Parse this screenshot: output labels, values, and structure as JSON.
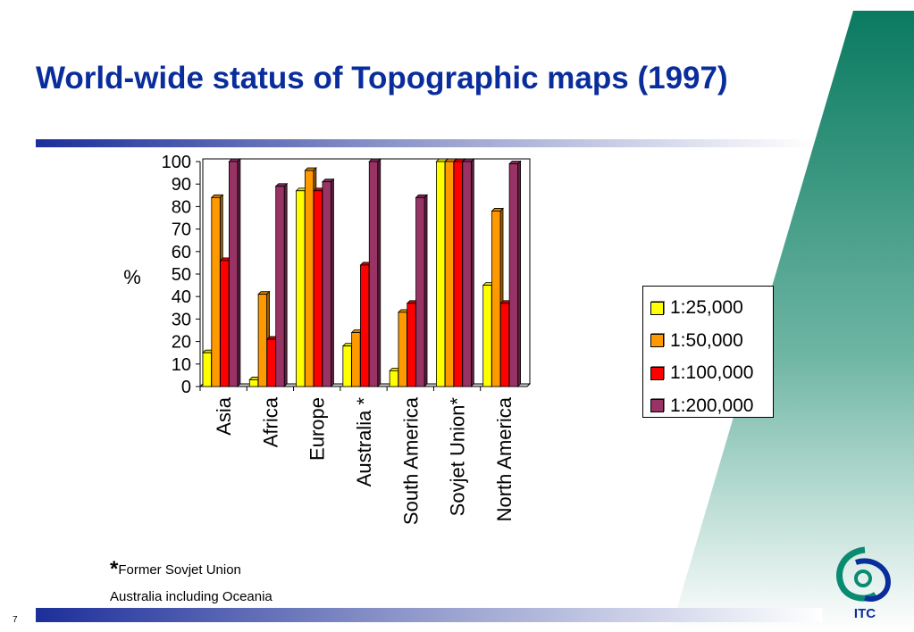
{
  "slide": {
    "title": "World-wide status of Topographic maps (1997)",
    "page_number": "7",
    "footnote_mark": "*",
    "footnote_1": "Former Sovjet Union",
    "footnote_2": "Australia including Oceania",
    "logo_text": "ITC",
    "colors": {
      "title": "#0a2d9c",
      "accent_green": "#0a7a60",
      "bar_blue": "#1c2f9a"
    }
  },
  "chart_data": {
    "type": "bar",
    "title": "",
    "xlabel": "",
    "ylabel": "%",
    "ylim": [
      0,
      100
    ],
    "yticks": [
      0,
      10,
      20,
      30,
      40,
      50,
      60,
      70,
      80,
      90,
      100
    ],
    "grid": false,
    "legend_position": "right",
    "style": "3d-clustered",
    "categories": [
      "Asia",
      "Africa",
      "Europe",
      "Australia *",
      "South America",
      "Sovjet Union*",
      "North America"
    ],
    "series": [
      {
        "name": "1:25,000",
        "color": "#ffff00",
        "values": [
          15,
          3,
          87,
          18,
          7,
          100,
          45
        ]
      },
      {
        "name": "1:50,000",
        "color": "#ff9900",
        "values": [
          84,
          41,
          96,
          24,
          33,
          100,
          78
        ]
      },
      {
        "name": "1:100,000",
        "color": "#ff0000",
        "values": [
          56,
          21,
          87,
          54,
          37,
          100,
          37
        ]
      },
      {
        "name": "1:200,000",
        "color": "#993366",
        "values": [
          100,
          89,
          91,
          100,
          84,
          100,
          99
        ]
      }
    ]
  }
}
